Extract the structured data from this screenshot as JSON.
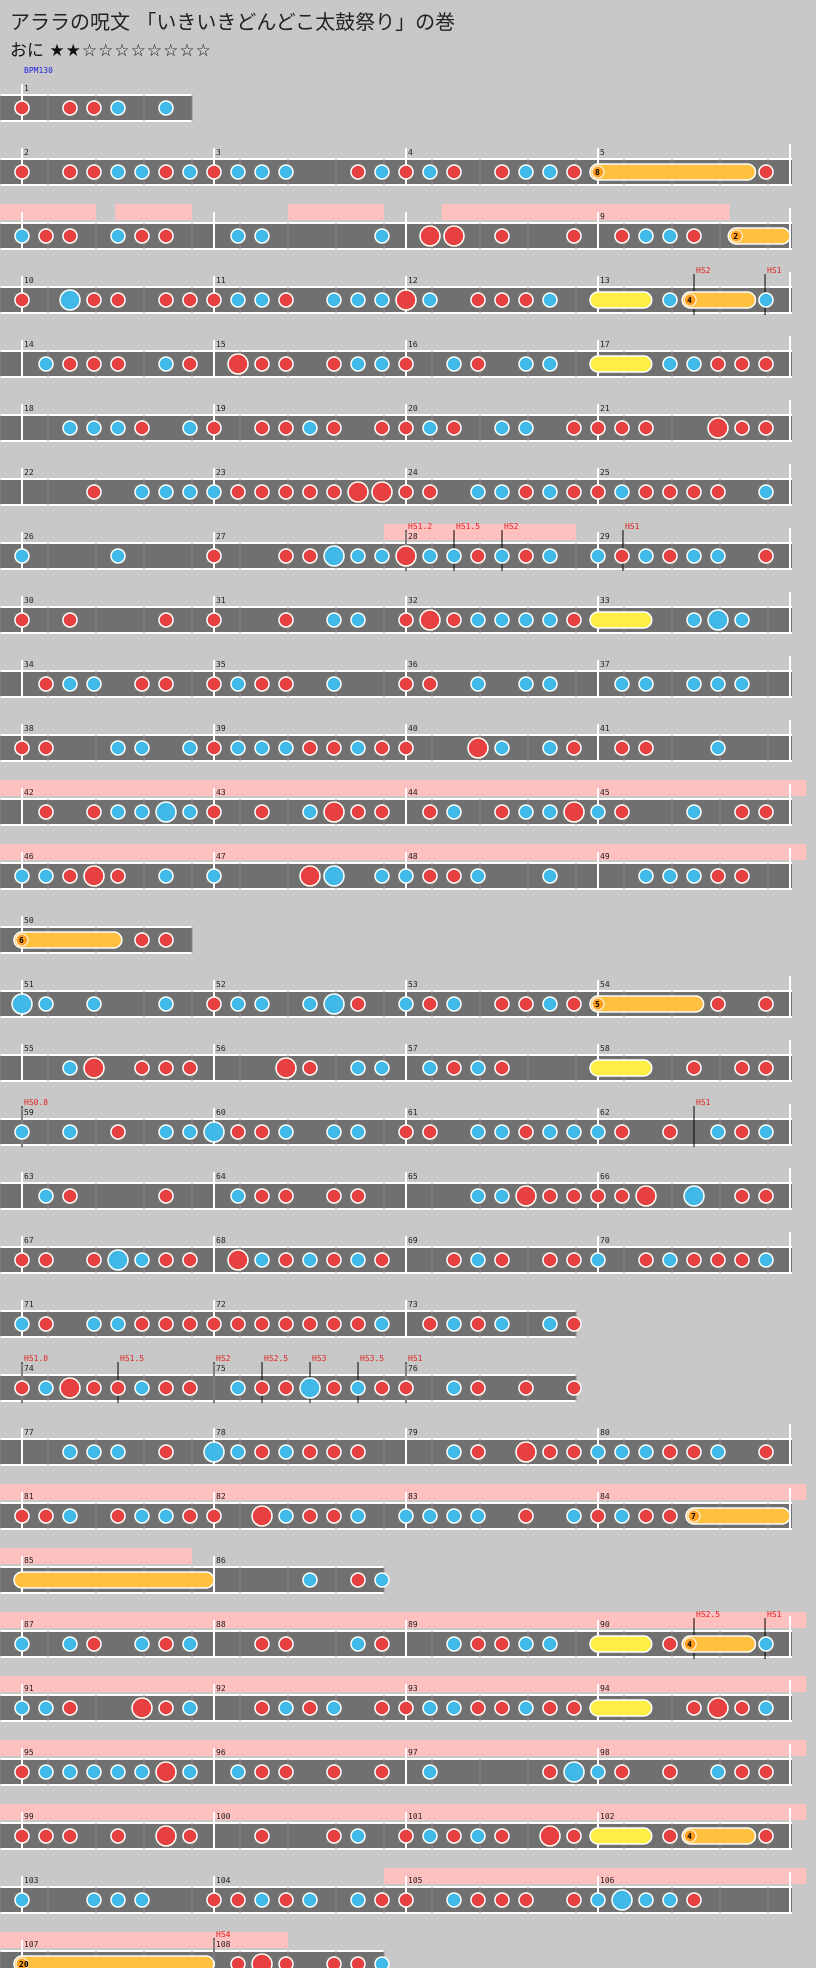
{
  "header": {
    "title": "アララの呪文 「いきいきどんどこ太鼓祭り」の巻",
    "difficulty": "おに",
    "stars": "★★☆☆☆☆☆☆☆☆"
  },
  "bpm_label": "BPM130",
  "colors": {
    "don": "#e84040",
    "ka": "#40b8e8",
    "roll": "#ffc040",
    "balloon": "#ffee44",
    "gogo": "#ffc0c0",
    "lane": "#707070"
  },
  "rows": [
    {
      "measures": [
        "1"
      ],
      "width": 1
    },
    {
      "measures": [
        "2",
        "3",
        "4",
        "5"
      ],
      "width": 4,
      "rolls": [
        {
          "s": 3.0,
          "e": 3.82,
          "n": "8"
        }
      ]
    },
    {
      "measures": [
        "",
        "",
        "",
        "9"
      ],
      "width": 4,
      "gogo": [
        [
          0,
          0.5
        ],
        [
          0.6,
          1.0
        ],
        [
          1.5,
          2.0
        ],
        [
          2.3,
          3.8
        ]
      ],
      "rolls": [
        {
          "s": 3.72,
          "e": 4.0,
          "n": "2"
        }
      ]
    },
    {
      "measures": [
        "10",
        "11",
        "12",
        "13"
      ],
      "width": 4,
      "rolls": [
        {
          "s": 3.0,
          "e": 3.28,
          "y": true
        },
        {
          "s": 3.48,
          "e": 3.82,
          "n": "4"
        }
      ],
      "speed": [
        {
          "p": 3.5,
          "t": "HS2"
        },
        {
          "p": 3.87,
          "t": "HS1"
        }
      ]
    },
    {
      "measures": [
        "14",
        "15",
        "16",
        "17"
      ],
      "width": 4,
      "rolls": [
        {
          "s": 3.0,
          "e": 3.28,
          "y": true
        }
      ]
    },
    {
      "measures": [
        "18",
        "19",
        "20",
        "21"
      ],
      "width": 4
    },
    {
      "measures": [
        "22",
        "23",
        "24",
        "25"
      ],
      "width": 4
    },
    {
      "measures": [
        "26",
        "27",
        "28",
        "29"
      ],
      "width": 4,
      "gogo": [
        [
          2.0,
          3.0
        ]
      ],
      "speed": [
        {
          "p": 2.0,
          "t": "HS1.2"
        },
        {
          "p": 2.25,
          "t": "HS1.5"
        },
        {
          "p": 2.5,
          "t": "HS2"
        },
        {
          "p": 3.13,
          "t": "HS1"
        }
      ]
    },
    {
      "measures": [
        "30",
        "31",
        "32",
        "33"
      ],
      "width": 4,
      "rolls": [
        {
          "s": 3.0,
          "e": 3.28,
          "y": true
        }
      ]
    },
    {
      "measures": [
        "34",
        "35",
        "36",
        "37"
      ],
      "width": 4
    },
    {
      "measures": [
        "38",
        "39",
        "40",
        "41"
      ],
      "width": 4
    },
    {
      "measures": [
        "42",
        "43",
        "44",
        "45"
      ],
      "width": 4,
      "gogo": [
        [
          0,
          4.2
        ]
      ]
    },
    {
      "measures": [
        "46",
        "47",
        "48",
        "49"
      ],
      "width": 4,
      "gogo": [
        [
          0,
          4.2
        ]
      ]
    },
    {
      "measures": [
        "50"
      ],
      "width": 1,
      "rolls": [
        {
          "s": 0.0,
          "e": 0.52,
          "n": "6"
        }
      ]
    },
    {
      "measures": [
        "51",
        "52",
        "53",
        "54"
      ],
      "width": 4,
      "rolls": [
        {
          "s": 3.0,
          "e": 3.55,
          "n": "5"
        }
      ]
    },
    {
      "measures": [
        "55",
        "56",
        "57",
        "58"
      ],
      "width": 4,
      "rolls": [
        {
          "s": 3.0,
          "e": 3.28,
          "y": true
        }
      ]
    },
    {
      "measures": [
        "59",
        "60",
        "61",
        "62"
      ],
      "width": 4,
      "speed": [
        {
          "p": 0,
          "t": "HS0.8"
        },
        {
          "p": 3.5,
          "t": "HS1"
        }
      ]
    },
    {
      "measures": [
        "63",
        "64",
        "65",
        "66"
      ],
      "width": 4
    },
    {
      "measures": [
        "67",
        "68",
        "69",
        "70"
      ],
      "width": 4
    },
    {
      "measures": [
        "71",
        "72",
        "73"
      ],
      "width": 3
    },
    {
      "measures": [
        "74",
        "75",
        "76"
      ],
      "width": 3,
      "speed": [
        {
          "p": 0,
          "t": "HS1.0"
        },
        {
          "p": 0.5,
          "t": "HS1.5"
        },
        {
          "p": 1.0,
          "t": "HS2"
        },
        {
          "p": 1.25,
          "t": "HS2.5"
        },
        {
          "p": 1.5,
          "t": "HS3"
        },
        {
          "p": 1.75,
          "t": "HS3.5"
        },
        {
          "p": 2.0,
          "t": "HS1"
        }
      ]
    },
    {
      "measures": [
        "77",
        "78",
        "79",
        "80"
      ],
      "width": 4
    },
    {
      "measures": [
        "81",
        "82",
        "83",
        "84"
      ],
      "width": 4,
      "gogo": [
        [
          0,
          4.2
        ]
      ],
      "rolls": [
        {
          "s": 3.5,
          "e": 4.0,
          "n": "7"
        }
      ]
    },
    {
      "measures": [
        "85",
        "86"
      ],
      "width": 2,
      "gogo": [
        [
          0,
          1.0
        ]
      ],
      "rolls": [
        {
          "s": 0.0,
          "e": 1.0
        }
      ]
    },
    {
      "measures": [
        "87",
        "88",
        "89",
        "90"
      ],
      "width": 4,
      "gogo": [
        [
          0,
          4.2
        ]
      ],
      "rolls": [
        {
          "s": 3.0,
          "e": 3.28,
          "y": true
        },
        {
          "s": 3.48,
          "e": 3.82,
          "n": "4"
        }
      ],
      "speed": [
        {
          "p": 3.5,
          "t": "HS2.5"
        },
        {
          "p": 3.87,
          "t": "HS1"
        }
      ]
    },
    {
      "measures": [
        "91",
        "92",
        "93",
        "94"
      ],
      "width": 4,
      "gogo": [
        [
          0,
          4.2
        ]
      ],
      "rolls": [
        {
          "s": 3.0,
          "e": 3.28,
          "y": true
        }
      ]
    },
    {
      "measures": [
        "95",
        "96",
        "97",
        "98"
      ],
      "width": 4,
      "gogo": [
        [
          0,
          4.2
        ]
      ]
    },
    {
      "measures": [
        "99",
        "100",
        "101",
        "102"
      ],
      "width": 4,
      "gogo": [
        [
          0,
          4.2
        ]
      ],
      "rolls": [
        {
          "s": 3.0,
          "e": 3.28,
          "y": true
        },
        {
          "s": 3.48,
          "e": 3.82,
          "n": "4"
        }
      ]
    },
    {
      "measures": [
        "103",
        "104",
        "105",
        "106"
      ],
      "width": 4,
      "gogo": [
        [
          2.0,
          4.2
        ]
      ]
    },
    {
      "measures": [
        "107",
        "108"
      ],
      "width": 2,
      "gogo": [
        [
          0,
          1.5
        ]
      ],
      "rolls": [
        {
          "s": 0.0,
          "e": 1.0,
          "n": "20"
        }
      ],
      "speed": [
        {
          "p": 1.0,
          "t": "HS4"
        }
      ]
    }
  ],
  "last_row_notes": [
    [
      1.25,
      "d",
      1
    ],
    [
      1.5,
      "d",
      1
    ],
    [
      1.58,
      "d",
      1
    ]
  ]
}
